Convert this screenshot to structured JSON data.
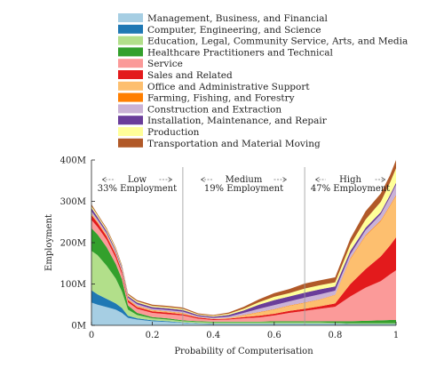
{
  "chart_data": {
    "type": "area",
    "stacked": true,
    "xlabel": "Probability of Computerisation",
    "ylabel": "Employment",
    "xlim": [
      0,
      1
    ],
    "ylim": [
      0,
      400
    ],
    "x_ticks": [
      0,
      0.2,
      0.4,
      0.6,
      0.8,
      1
    ],
    "x_tick_labels": [
      "0",
      "0.2",
      "0.4",
      "0.6",
      "0.8",
      "1"
    ],
    "y_ticks": [
      0,
      100,
      200,
      300,
      400
    ],
    "y_tick_labels": [
      "0M",
      "100M",
      "200M",
      "300M",
      "400M"
    ],
    "grid": false,
    "legend_position": "top",
    "dividers": [
      0.3,
      0.7
    ],
    "regions": [
      {
        "name": "Low",
        "share": "33% Employment",
        "range": [
          0,
          0.3
        ]
      },
      {
        "name": "Medium",
        "share": "19% Employment",
        "range": [
          0.3,
          0.7
        ]
      },
      {
        "name": "High",
        "share": "47% Employment",
        "range": [
          0.7,
          1
        ]
      }
    ],
    "x": [
      0,
      0.02,
      0.05,
      0.08,
      0.1,
      0.12,
      0.15,
      0.2,
      0.25,
      0.3,
      0.35,
      0.4,
      0.45,
      0.5,
      0.55,
      0.6,
      0.65,
      0.7,
      0.75,
      0.8,
      0.85,
      0.9,
      0.95,
      0.98,
      1.0
    ],
    "series": [
      {
        "name": "Management, Business, and Financial",
        "color": "#a6cee3",
        "values": [
          55,
          50,
          44,
          38,
          30,
          18,
          14,
          10,
          8,
          6,
          4,
          3,
          3,
          3,
          3,
          3,
          3,
          3,
          3,
          3,
          2,
          2,
          2,
          2,
          2
        ]
      },
      {
        "name": "Computer, Engineering, and Science",
        "color": "#1f78b4",
        "values": [
          30,
          25,
          20,
          15,
          12,
          5,
          3,
          2,
          2,
          1,
          1,
          1,
          1,
          1,
          1,
          1,
          1,
          1,
          1,
          1,
          1,
          1,
          1,
          1,
          1
        ]
      },
      {
        "name": "Education, Legal, Community Service, Arts, and Media",
        "color": "#b2df8a",
        "values": [
          95,
          95,
          80,
          60,
          40,
          15,
          8,
          5,
          4,
          3,
          3,
          3,
          3,
          3,
          3,
          3,
          3,
          3,
          3,
          2,
          2,
          2,
          2,
          2,
          2
        ]
      },
      {
        "name": "Healthcare Practitioners and Technical",
        "color": "#33a02c",
        "values": [
          55,
          50,
          45,
          35,
          30,
          10,
          5,
          3,
          3,
          2,
          2,
          2,
          2,
          2,
          2,
          3,
          3,
          3,
          3,
          4,
          5,
          6,
          7,
          8,
          8
        ]
      },
      {
        "name": "Service",
        "color": "#fb9a99",
        "values": [
          20,
          18,
          18,
          15,
          12,
          8,
          10,
          10,
          10,
          12,
          6,
          4,
          5,
          8,
          10,
          14,
          20,
          25,
          30,
          35,
          60,
          80,
          95,
          110,
          120
        ]
      },
      {
        "name": "Sales and Related",
        "color": "#e31a1c",
        "values": [
          12,
          10,
          8,
          8,
          6,
          5,
          4,
          4,
          4,
          3,
          3,
          2,
          2,
          3,
          4,
          4,
          5,
          5,
          6,
          8,
          30,
          45,
          60,
          70,
          80
        ]
      },
      {
        "name": "Office and Administrative Support",
        "color": "#fdbf6f",
        "values": [
          3,
          3,
          3,
          2,
          2,
          2,
          2,
          2,
          2,
          2,
          1,
          1,
          2,
          4,
          8,
          10,
          12,
          14,
          16,
          20,
          60,
          80,
          85,
          95,
          100
        ]
      },
      {
        "name": "Farming, Fishing, and Forestry",
        "color": "#ff7f00",
        "values": [
          1,
          1,
          1,
          1,
          1,
          1,
          1,
          1,
          1,
          1,
          0,
          0,
          0,
          1,
          1,
          1,
          1,
          1,
          1,
          1,
          2,
          2,
          2,
          2,
          2
        ]
      },
      {
        "name": "Construction and Extraction",
        "color": "#cab2d6",
        "values": [
          5,
          4,
          4,
          3,
          3,
          3,
          4,
          3,
          3,
          3,
          2,
          2,
          3,
          5,
          8,
          10,
          10,
          12,
          12,
          10,
          10,
          12,
          15,
          20,
          25
        ]
      },
      {
        "name": "Installation, Maintenance, and Repair",
        "color": "#6a3d9a",
        "values": [
          8,
          6,
          5,
          4,
          4,
          4,
          4,
          4,
          4,
          4,
          3,
          3,
          4,
          6,
          10,
          12,
          12,
          12,
          12,
          10,
          8,
          6,
          5,
          5,
          5
        ]
      },
      {
        "name": "Production",
        "color": "#ffff99",
        "values": [
          5,
          4,
          4,
          4,
          3,
          3,
          3,
          3,
          3,
          3,
          2,
          2,
          3,
          4,
          6,
          8,
          8,
          10,
          10,
          10,
          15,
          20,
          25,
          30,
          35
        ]
      },
      {
        "name": "Transportation and Material Moving",
        "color": "#b15928",
        "values": [
          4,
          3,
          3,
          3,
          3,
          3,
          3,
          3,
          3,
          3,
          2,
          2,
          3,
          5,
          7,
          9,
          10,
          12,
          12,
          12,
          15,
          20,
          20,
          18,
          20
        ]
      }
    ]
  }
}
